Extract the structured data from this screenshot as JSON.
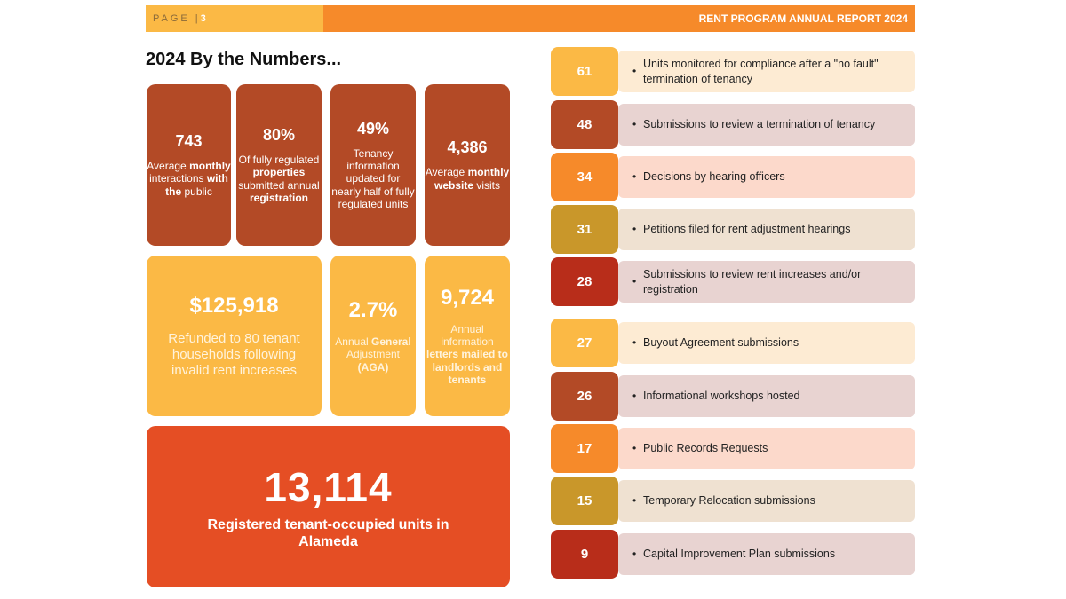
{
  "header": {
    "page_label": "PAGE |",
    "page_number": "3",
    "report_title": "RENT PROGRAM ANNUAL REPORT 2024"
  },
  "section_title": "2024 By the Numbers...",
  "tiles": [
    {
      "value": "743",
      "desc_html": "Average <b>monthly</b> interactions <b>with the</b> public"
    },
    {
      "value": "80%",
      "desc_html": "Of fully regulated <b>properties</b> submitted annual <b>registration</b>"
    },
    {
      "value": "49%",
      "desc_html": "Tenancy information updated for nearly half of fully regulated units"
    },
    {
      "value": "4,386",
      "desc_html": "Average <b>monthly website</b> visits"
    },
    {
      "value": "$125,918",
      "desc_html": "Refunded to 80 tenant households following invalid rent increases"
    },
    {
      "value": "2.7%",
      "desc_html": "Annual <b>General</b> Adjustment <b>(AGA)</b>"
    },
    {
      "value": "9,724",
      "desc_html": "Annual information <b>letters mailed to landlords and tenants</b>"
    },
    {
      "value": "13,114",
      "desc_html": "Registered tenant-occupied units in Alameda"
    }
  ],
  "stats": [
    {
      "value": "61",
      "label": "Units monitored for compliance after a \"no fault\" termination of tenancy",
      "num_color": "#fbb945",
      "bg_color": "#fdebd3"
    },
    {
      "value": "48",
      "label": "Submissions to review a termination of tenancy",
      "num_color": "#b34a26",
      "bg_color": "#e8d3d1"
    },
    {
      "value": "34",
      "label": "Decisions by hearing officers",
      "num_color": "#f68a2a",
      "bg_color": "#fcd9cb"
    },
    {
      "value": "31",
      "label": "Petitions filed for rent adjustment hearings",
      "num_color": "#c9972a",
      "bg_color": "#efe1d1"
    },
    {
      "value": "28",
      "label": "Submissions to review rent increases and/or registration",
      "num_color": "#b82d1a",
      "bg_color": "#e8d3d1"
    },
    {
      "value": "27",
      "label": "Buyout Agreement submissions",
      "num_color": "#fbb945",
      "bg_color": "#fdebd3"
    },
    {
      "value": "26",
      "label": "Informational workshops hosted",
      "num_color": "#b34a26",
      "bg_color": "#e8d3d1"
    },
    {
      "value": "17",
      "label": "Public Records Requests",
      "num_color": "#f68a2a",
      "bg_color": "#fcd9cb"
    },
    {
      "value": "15",
      "label": "Temporary Relocation submissions",
      "num_color": "#c9972a",
      "bg_color": "#efe1d1"
    },
    {
      "value": "9",
      "label": "Capital Improvement Plan submissions",
      "num_color": "#b82d1a",
      "bg_color": "#e8d3d1"
    }
  ]
}
